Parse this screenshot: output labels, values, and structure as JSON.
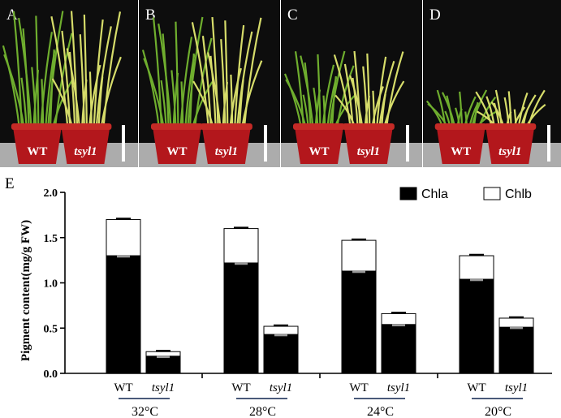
{
  "photos": {
    "panels": [
      {
        "letter": "A",
        "left": "WT",
        "right": "tsyl1",
        "height": 0.95
      },
      {
        "letter": "B",
        "left": "WT",
        "right": "tsyl1",
        "height": 0.9
      },
      {
        "letter": "C",
        "left": "WT",
        "right": "tsyl1",
        "height": 0.62
      },
      {
        "letter": "D",
        "left": "WT",
        "right": "tsyl1",
        "height": 0.3
      }
    ],
    "colors": {
      "wt_leaf": "#6fae2e",
      "mutant_leaf": "#d6dc6a",
      "pot": "#b3171c",
      "background": "#0d0d0d"
    }
  },
  "chart_panel_letter": "E",
  "chart_data": {
    "type": "bar",
    "stacked": true,
    "ylabel": "Pigment content(mg/g FW)",
    "ylim": [
      0,
      2.0
    ],
    "yticks": [
      "0.0",
      "0.5",
      "1.0",
      "1.5",
      "2.0"
    ],
    "groups": [
      {
        "temperature": "32°C",
        "genotypes": [
          "WT",
          "tsyl1"
        ]
      },
      {
        "temperature": "28°C",
        "genotypes": [
          "WT",
          "tsyl1"
        ]
      },
      {
        "temperature": "24°C",
        "genotypes": [
          "WT",
          "tsyl1"
        ]
      },
      {
        "temperature": "20°C",
        "genotypes": [
          "WT",
          "tsyl1"
        ]
      }
    ],
    "series": [
      {
        "name": "Chla",
        "color": "#000000",
        "values": [
          1.3,
          0.19,
          1.22,
          0.43,
          1.13,
          0.54,
          1.04,
          0.51
        ]
      },
      {
        "name": "Chlb",
        "color": "#ffffff",
        "values": [
          0.4,
          0.05,
          0.38,
          0.09,
          0.34,
          0.12,
          0.26,
          0.1
        ]
      }
    ],
    "grid": false,
    "legend_position": "top-right"
  }
}
